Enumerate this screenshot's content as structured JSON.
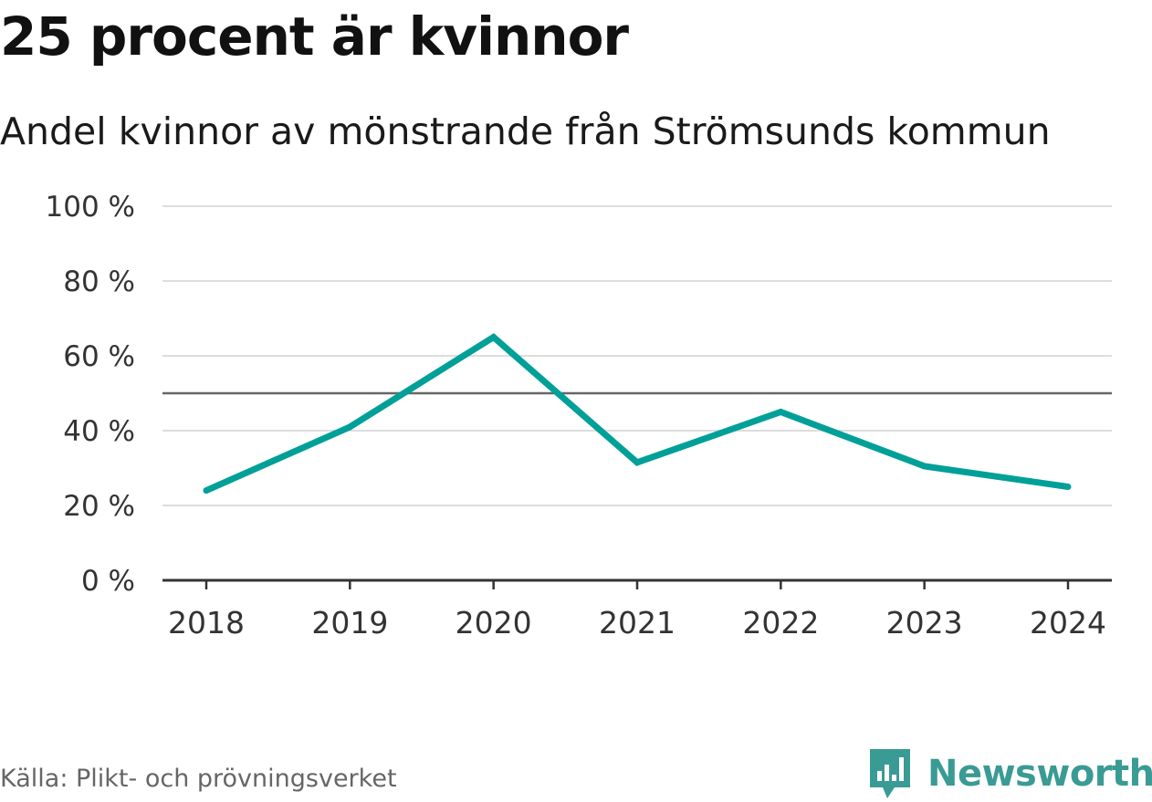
{
  "colors": {
    "line": "#00a098",
    "brand": "#3a9b94",
    "grid": "#dddddd",
    "reference_line": "#666666",
    "axis": "#333333"
  },
  "header": {
    "title": "25 procent är kvinnor",
    "subtitle": "Andel kvinnor av mönstrande från Strömsunds kommun"
  },
  "footer": {
    "source": "Källa: Plikt- och prövningsverket",
    "brand": "Newsworthy",
    "brand_icon": "newsworthy-logo-icon"
  },
  "chart_data": {
    "type": "line",
    "title": "25 procent är kvinnor",
    "subtitle": "Andel kvinnor av mönstrande från Strömsunds kommun",
    "xlabel": "",
    "ylabel": "",
    "categories": [
      "2018",
      "2019",
      "2020",
      "2021",
      "2022",
      "2023",
      "2024"
    ],
    "series": [
      {
        "name": "Andel kvinnor",
        "values": [
          24,
          41,
          65,
          31.5,
          45,
          30.5,
          25
        ]
      }
    ],
    "ylim": [
      0,
      100
    ],
    "yticks": [
      0,
      20,
      40,
      60,
      80,
      100
    ],
    "ytick_labels": [
      "0 %",
      "20 %",
      "40 %",
      "60 %",
      "80 %",
      "100 %"
    ],
    "reference_line": 50,
    "grid": true,
    "legend": "none"
  }
}
